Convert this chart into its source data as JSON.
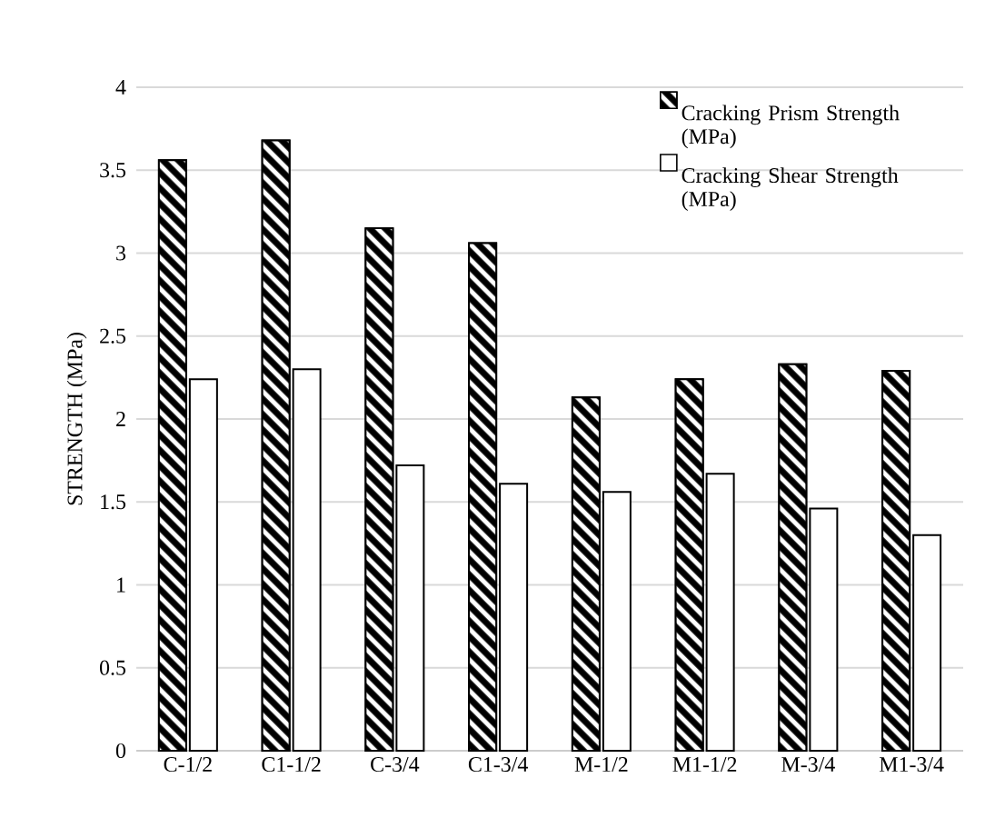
{
  "chart_data": {
    "type": "bar",
    "ylabel": "STRENGTH (MPa)",
    "categories": [
      "C-1/2",
      "C1-1/2",
      "C-3/4",
      "C1-3/4",
      "M-1/2",
      "M1-1/2",
      "M-3/4",
      "M1-3/4"
    ],
    "series": [
      {
        "name": "Cracking Prism Strength (MPa)",
        "color": "#000000",
        "values": [
          3.56,
          3.68,
          3.15,
          3.06,
          2.13,
          2.24,
          2.33,
          2.29
        ]
      },
      {
        "name": "Cracking Shear Strength (MPa)",
        "color": "#ffffff",
        "values": [
          2.24,
          2.3,
          1.72,
          1.61,
          1.56,
          1.67,
          1.46,
          1.3
        ]
      }
    ],
    "ylim": [
      0,
      4
    ],
    "yticks": [
      0,
      0.5,
      1,
      1.5,
      2,
      2.5,
      3,
      3.5,
      4
    ],
    "grid": "y",
    "legend": "top right"
  }
}
